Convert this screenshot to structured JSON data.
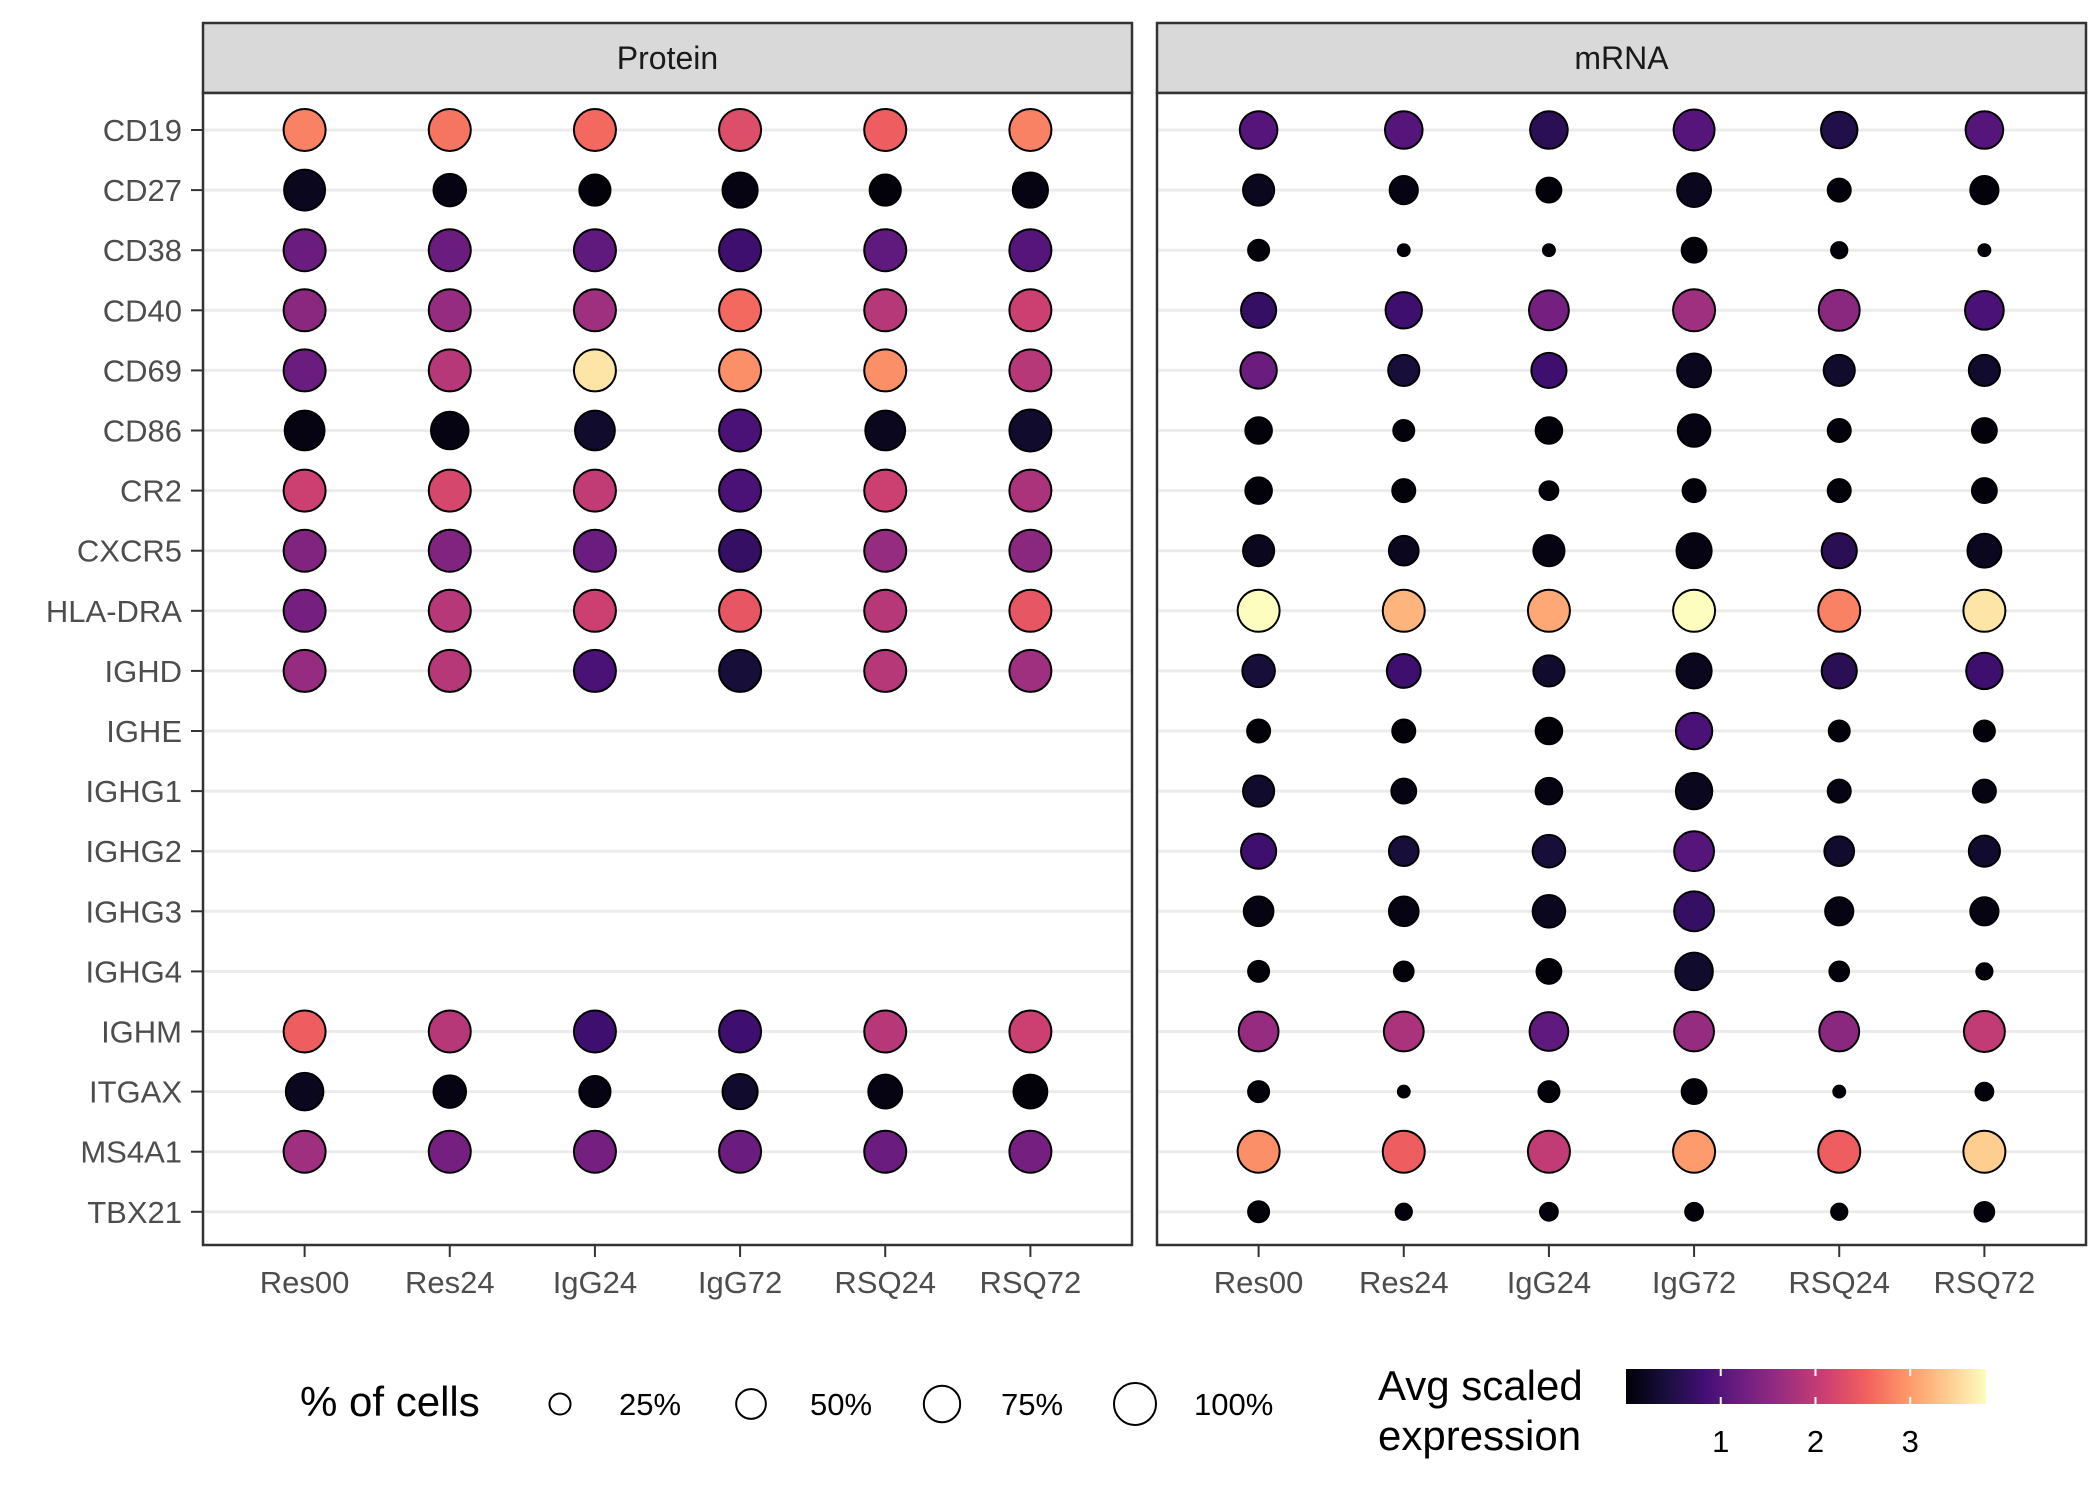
{
  "chart_data": {
    "type": "dot",
    "panels": [
      "Protein",
      "mRNA"
    ],
    "categories": [
      "Res00",
      "Res24",
      "IgG24",
      "IgG72",
      "RSQ24",
      "RSQ72"
    ],
    "genes": [
      "TBX21",
      "MS4A1",
      "ITGAX",
      "IGHM",
      "IGHG4",
      "IGHG3",
      "IGHG2",
      "IGHG1",
      "IGHE",
      "IGHD",
      "HLA-DRA",
      "CXCR5",
      "CR2",
      "CD86",
      "CD69",
      "CD40",
      "CD38",
      "CD27",
      "CD19"
    ],
    "size_legend": {
      "title": "% of cells",
      "labels": [
        "25%",
        "50%",
        "75%",
        "100%"
      ],
      "values": [
        25,
        50,
        75,
        100
      ]
    },
    "color_legend": {
      "title_line1": "Avg scaled",
      "title_line2": "expression",
      "tick_labels": [
        "1",
        "2",
        "3"
      ],
      "ticks": [
        1,
        2,
        3
      ],
      "range": [
        0,
        3.8
      ],
      "palette": "magma"
    },
    "series": [
      {
        "name": "Protein",
        "pct": {
          "TBX21": [
            null,
            null,
            null,
            null,
            null,
            null
          ],
          "MS4A1": [
            100,
            100,
            100,
            100,
            100,
            100
          ],
          "ITGAX": [
            80,
            60,
            55,
            70,
            65,
            65
          ],
          "IGHM": [
            100,
            100,
            100,
            100,
            100,
            100
          ],
          "IGHG4": [
            null,
            null,
            null,
            null,
            null,
            null
          ],
          "IGHG3": [
            null,
            null,
            null,
            null,
            null,
            null
          ],
          "IGHG2": [
            null,
            null,
            null,
            null,
            null,
            null
          ],
          "IGHG1": [
            null,
            null,
            null,
            null,
            null,
            null
          ],
          "IGHE": [
            null,
            null,
            null,
            null,
            null,
            null
          ],
          "IGHD": [
            100,
            100,
            100,
            100,
            100,
            100
          ],
          "HLA-DRA": [
            100,
            100,
            100,
            100,
            100,
            100
          ],
          "CXCR5": [
            100,
            100,
            100,
            100,
            100,
            100
          ],
          "CR2": [
            100,
            100,
            100,
            100,
            100,
            100
          ],
          "CD86": [
            90,
            80,
            90,
            100,
            90,
            100
          ],
          "CD69": [
            100,
            100,
            100,
            100,
            100,
            100
          ],
          "CD40": [
            100,
            100,
            100,
            100,
            100,
            100
          ],
          "CD38": [
            100,
            100,
            100,
            100,
            100,
            100
          ],
          "CD27": [
            95,
            60,
            55,
            70,
            55,
            70
          ],
          "CD19": [
            100,
            100,
            100,
            100,
            100,
            100
          ]
        },
        "expr": {
          "TBX21": [
            null,
            null,
            null,
            null,
            null,
            null
          ],
          "MS4A1": [
            1.7,
            1.3,
            1.3,
            1.2,
            1.2,
            1.3
          ],
          "ITGAX": [
            0.2,
            0.1,
            0.1,
            0.3,
            0.1,
            0.05
          ],
          "IGHM": [
            2.5,
            1.9,
            0.8,
            0.8,
            1.9,
            2.1
          ],
          "IGHG4": [
            null,
            null,
            null,
            null,
            null,
            null
          ],
          "IGHG3": [
            null,
            null,
            null,
            null,
            null,
            null
          ],
          "IGHG2": [
            null,
            null,
            null,
            null,
            null,
            null
          ],
          "IGHG1": [
            null,
            null,
            null,
            null,
            null,
            null
          ],
          "IGHE": [
            null,
            null,
            null,
            null,
            null,
            null
          ],
          "IGHD": [
            1.6,
            1.9,
            0.9,
            0.4,
            1.9,
            1.7
          ],
          "HLA-DRA": [
            1.3,
            1.9,
            2.1,
            2.4,
            1.9,
            2.4
          ],
          "CXCR5": [
            1.4,
            1.4,
            1.2,
            0.7,
            1.6,
            1.5
          ],
          "CR2": [
            2.1,
            2.2,
            2.0,
            0.9,
            2.1,
            1.8
          ],
          "CD86": [
            0.1,
            0.1,
            0.3,
            0.9,
            0.2,
            0.3
          ],
          "CD69": [
            1.2,
            1.9,
            3.6,
            2.9,
            2.9,
            1.9
          ],
          "CD40": [
            1.5,
            1.6,
            1.7,
            2.6,
            1.9,
            2.1
          ],
          "CD38": [
            1.2,
            1.2,
            1.1,
            0.8,
            1.1,
            1.0
          ],
          "CD27": [
            0.2,
            0.1,
            0.05,
            0.1,
            0.05,
            0.1
          ],
          "CD19": [
            2.8,
            2.7,
            2.6,
            2.3,
            2.5,
            2.8
          ]
        }
      },
      {
        "name": "mRNA",
        "pct": {
          "TBX21": [
            25,
            15,
            18,
            18,
            15,
            22
          ],
          "MS4A1": [
            100,
            100,
            100,
            100,
            100,
            100
          ],
          "ITGAX": [
            25,
            8,
            25,
            35,
            8,
            18
          ],
          "IGHM": [
            90,
            90,
            85,
            90,
            90,
            95
          ],
          "IGHG4": [
            25,
            22,
            35,
            80,
            22,
            15
          ],
          "IGHG3": [
            50,
            50,
            60,
            90,
            45,
            45
          ],
          "IGHG2": [
            70,
            50,
            60,
            90,
            50,
            55
          ],
          "IGHG1": [
            55,
            35,
            40,
            75,
            30,
            30
          ],
          "IGHE": [
            30,
            30,
            40,
            75,
            25,
            25
          ],
          "IGHD": [
            60,
            65,
            55,
            70,
            70,
            75
          ],
          "HLA-DRA": [
            100,
            100,
            100,
            100,
            100,
            100
          ],
          "CXCR5": [
            55,
            50,
            55,
            70,
            70,
            65
          ],
          "CR2": [
            40,
            30,
            20,
            30,
            30,
            35
          ],
          "CD86": [
            40,
            25,
            40,
            60,
            30,
            35
          ],
          "CD69": [
            75,
            55,
            70,
            65,
            55,
            55
          ],
          "CD40": [
            70,
            75,
            90,
            100,
            95,
            85
          ],
          "CD38": [
            25,
            8,
            8,
            35,
            15,
            8
          ],
          "CD27": [
            55,
            45,
            35,
            65,
            30,
            45
          ],
          "CD19": [
            80,
            80,
            80,
            95,
            75,
            80
          ]
        },
        "expr": {
          "TBX21": [
            0.05,
            0.05,
            0.05,
            0.05,
            0.05,
            0.05
          ],
          "MS4A1": [
            2.9,
            2.5,
            2.0,
            3.0,
            2.5,
            3.4
          ],
          "ITGAX": [
            0.05,
            0.05,
            0.05,
            0.05,
            0.05,
            0.05
          ],
          "IGHM": [
            1.6,
            1.8,
            1.1,
            1.6,
            1.5,
            2.0
          ],
          "IGHG4": [
            0.05,
            0.05,
            0.05,
            0.3,
            0.05,
            0.05
          ],
          "IGHG3": [
            0.1,
            0.1,
            0.2,
            0.7,
            0.1,
            0.1
          ],
          "IGHG2": [
            0.8,
            0.4,
            0.4,
            1.0,
            0.3,
            0.3
          ],
          "IGHG1": [
            0.3,
            0.1,
            0.1,
            0.2,
            0.1,
            0.1
          ],
          "IGHE": [
            0.05,
            0.05,
            0.05,
            0.9,
            0.05,
            0.05
          ],
          "IGHD": [
            0.4,
            0.8,
            0.3,
            0.2,
            0.6,
            0.8
          ],
          "HLA-DRA": [
            3.8,
            3.2,
            3.1,
            3.8,
            2.8,
            3.6
          ],
          "CXCR5": [
            0.2,
            0.2,
            0.1,
            0.1,
            0.6,
            0.2
          ],
          "CR2": [
            0.05,
            0.05,
            0.05,
            0.05,
            0.05,
            0.05
          ],
          "CD86": [
            0.05,
            0.05,
            0.05,
            0.1,
            0.05,
            0.05
          ],
          "CD69": [
            1.2,
            0.4,
            0.8,
            0.2,
            0.3,
            0.3
          ],
          "CD40": [
            0.7,
            0.8,
            1.3,
            1.7,
            1.5,
            0.9
          ],
          "CD38": [
            0.05,
            0.05,
            0.05,
            0.05,
            0.05,
            0.05
          ],
          "CD27": [
            0.2,
            0.1,
            0.05,
            0.2,
            0.05,
            0.05
          ],
          "CD19": [
            1.0,
            1.0,
            0.6,
            1.0,
            0.5,
            1.0
          ]
        }
      }
    ]
  }
}
